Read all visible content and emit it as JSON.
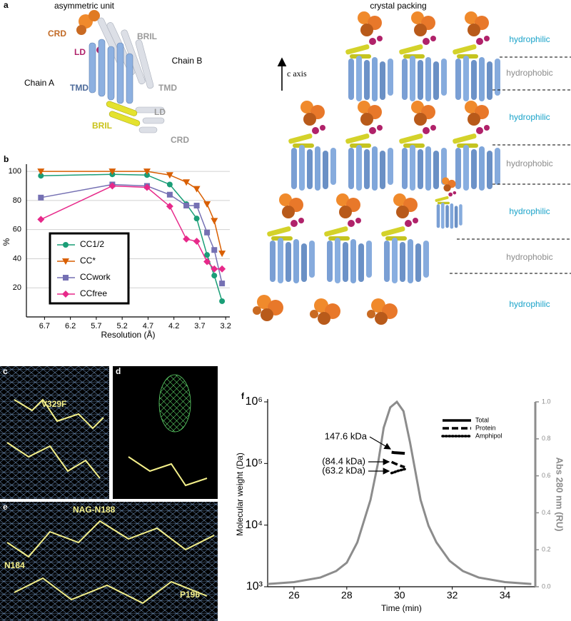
{
  "figure": {
    "a": {
      "label": "a",
      "title": "asymmetric unit",
      "labels": [
        "CRD",
        "LD",
        "BRIL",
        "Chain B",
        "Chain A",
        "TMD",
        "TMD",
        "BRIL",
        "LD",
        "CRD"
      ]
    },
    "packing": {
      "title": "crystal packing",
      "axis": "c axis",
      "layers": [
        "hydrophilic",
        "hydrophobic",
        "hydrophilic",
        "hydrophobic",
        "hydrophilic",
        "hydrophobic",
        "hydrophilic"
      ]
    },
    "c": {
      "label": "c",
      "annotation": "V329F"
    },
    "d": {
      "label": "d"
    },
    "e": {
      "label": "e",
      "annotations": [
        "NAG-N188",
        "N184",
        "P196"
      ]
    }
  },
  "chart_data": [
    {
      "type": "line",
      "label": "b",
      "xlabel": "Resolution (Å)",
      "ylabel": "%",
      "x": [
        6.77,
        5.39,
        4.72,
        4.28,
        3.96,
        3.76,
        3.56,
        3.42,
        3.27
      ],
      "xlim": [
        7.05,
        3.12
      ],
      "xticks": [
        6.7,
        6.2,
        5.7,
        5.2,
        4.7,
        4.2,
        3.7,
        3.2
      ],
      "ylim": [
        0,
        103
      ],
      "yticks": [
        20,
        40,
        60,
        80,
        100
      ],
      "grid": true,
      "legend": "center-left",
      "legend_frame": true,
      "series": [
        {
          "name": "CC1/2",
          "color": "#1a9e77",
          "marker": "circle",
          "values": [
            97,
            98,
            97.5,
            91,
            77.5,
            67.6,
            42.6,
            28.4,
            10.8
          ]
        },
        {
          "name": "CC*",
          "color": "#d95f02",
          "marker": "triangle",
          "values": [
            100,
            100,
            100,
            97.5,
            92.6,
            88,
            77.5,
            66,
            43.6
          ]
        },
        {
          "name": "CCwork",
          "color": "#7570b3",
          "marker": "square",
          "values": [
            82,
            91,
            90,
            84,
            76.5,
            76.5,
            58,
            46,
            23
          ]
        },
        {
          "name": "CCfree",
          "color": "#e7298a",
          "marker": "diamond",
          "values": [
            67,
            90,
            89,
            76,
            53.5,
            52,
            38,
            33,
            33
          ]
        }
      ]
    },
    {
      "type": "line",
      "label": "f",
      "xlabel": "Time (min)",
      "ylabel": "Molecular weight (Da)",
      "y2label": "Abs 280 nm (RU)",
      "xlim": [
        25,
        35.15
      ],
      "xticks": [
        26,
        28,
        30,
        32,
        34
      ],
      "ylim": [
        1000,
        1000000
      ],
      "yscale": "log",
      "yticks": [
        {
          "value": 1000,
          "label": "10³"
        },
        {
          "value": 10000,
          "label": "10⁴"
        },
        {
          "value": 100000,
          "label": "10⁵"
        },
        {
          "value": 1000000,
          "label": "10⁶"
        }
      ],
      "y2lim": [
        0,
        1
      ],
      "y2ticks": [
        {
          "value": 0,
          "label": "0.0"
        },
        0.2,
        0.4,
        0.6,
        0.8,
        {
          "value": 1,
          "label": "1.0"
        }
      ],
      "legend": "upper-right",
      "annotations": [
        "147.6 kDa",
        "(84.4 kDa)",
        "(63.2 kDa)"
      ],
      "series": [
        {
          "name": "Total",
          "color": "#000000",
          "dash": "solid",
          "x": [
            29.7,
            29.8,
            29.9,
            30.0,
            30.1,
            30.2
          ],
          "values": [
            152000,
            150000,
            149000,
            148000,
            147000,
            146000
          ]
        },
        {
          "name": "Protein",
          "color": "#000000",
          "dash": "dashed",
          "x": [
            29.7,
            29.8,
            29.9,
            30.0,
            30.1,
            30.2
          ],
          "values": [
            106000,
            101000,
            97000,
            93000,
            90000,
            87000
          ]
        },
        {
          "name": "Amphipol",
          "color": "#000000",
          "dash": "dotted",
          "x": [
            29.7,
            29.8,
            29.9,
            30.0,
            30.1,
            30.2
          ],
          "values": [
            70000,
            72000,
            75000,
            77000,
            79000,
            81000
          ]
        },
        {
          "color": "#8c8c8c",
          "axis": "y2",
          "x": [
            25,
            26,
            27,
            27.6,
            28,
            28.4,
            28.9,
            29.2,
            29.4,
            29.65,
            29.9,
            30.15,
            30.4,
            30.8,
            31.1,
            31.4,
            31.9,
            32.4,
            33,
            34,
            35
          ],
          "values": [
            0.015,
            0.025,
            0.05,
            0.085,
            0.13,
            0.24,
            0.47,
            0.68,
            0.86,
            0.97,
            1.0,
            0.95,
            0.78,
            0.47,
            0.33,
            0.24,
            0.14,
            0.085,
            0.05,
            0.025,
            0.015
          ]
        }
      ]
    }
  ]
}
